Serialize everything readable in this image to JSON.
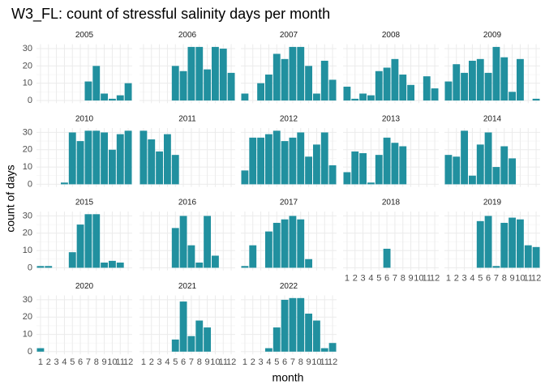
{
  "chart_data": {
    "type": "bar",
    "title": "W3_FL: count of stressful salinity days per month",
    "x_label": "month",
    "y_label": "count of days",
    "categories": [
      "1",
      "2",
      "3",
      "4",
      "5",
      "6",
      "7",
      "8",
      "9",
      "10",
      "11",
      "12"
    ],
    "color": "#21909f",
    "ylim": [
      -1.55,
      32.55
    ],
    "yticks": [
      0,
      10,
      20,
      30
    ],
    "grid": true,
    "facets": [
      {
        "name": "2005",
        "values": [
          null,
          null,
          null,
          null,
          null,
          null,
          11,
          20,
          4,
          1,
          3,
          10
        ]
      },
      {
        "name": "2006",
        "values": [
          null,
          null,
          null,
          null,
          20,
          17,
          31,
          31,
          18,
          31,
          30,
          16
        ]
      },
      {
        "name": "2007",
        "values": [
          4,
          null,
          10,
          15,
          27,
          24,
          31,
          31,
          20,
          4,
          23,
          12
        ]
      },
      {
        "name": "2008",
        "values": [
          8,
          1,
          4,
          3,
          17,
          19,
          24,
          15,
          9,
          null,
          14,
          7
        ]
      },
      {
        "name": "2009",
        "values": [
          11,
          21,
          16,
          23,
          24,
          16,
          31,
          25,
          5,
          24,
          null,
          1
        ]
      },
      {
        "name": "2010",
        "values": [
          null,
          null,
          null,
          1,
          30,
          25,
          31,
          31,
          30,
          20,
          29,
          31
        ]
      },
      {
        "name": "2011",
        "values": [
          31,
          26,
          19,
          29,
          17,
          null,
          null,
          null,
          null,
          null,
          null,
          null
        ]
      },
      {
        "name": "2012",
        "values": [
          8,
          27,
          27,
          29,
          31,
          25,
          27,
          30,
          16,
          23,
          30,
          11
        ]
      },
      {
        "name": "2013",
        "values": [
          7,
          19,
          18,
          1,
          17,
          27,
          24,
          22,
          null,
          null,
          null,
          null
        ]
      },
      {
        "name": "2014",
        "values": [
          17,
          16,
          31,
          5,
          23,
          30,
          10,
          22,
          15,
          null,
          null,
          null
        ]
      },
      {
        "name": "2015",
        "values": [
          1,
          1,
          null,
          null,
          9,
          25,
          31,
          31,
          3,
          4,
          3,
          null
        ]
      },
      {
        "name": "2016",
        "values": [
          null,
          null,
          null,
          null,
          23,
          30,
          13,
          3,
          30,
          7,
          null,
          null
        ]
      },
      {
        "name": "2017",
        "values": [
          1,
          13,
          null,
          21,
          26,
          28,
          30,
          28,
          5,
          null,
          null,
          null
        ]
      },
      {
        "name": "2018",
        "values": [
          null,
          null,
          null,
          null,
          null,
          11,
          null,
          null,
          null,
          null,
          null,
          null
        ]
      },
      {
        "name": "2019",
        "values": [
          null,
          null,
          null,
          null,
          27,
          30,
          1,
          26,
          29,
          28,
          13,
          12
        ]
      },
      {
        "name": "2020",
        "values": [
          2,
          null,
          null,
          null,
          null,
          null,
          null,
          null,
          null,
          null,
          null,
          null
        ]
      },
      {
        "name": "2021",
        "values": [
          null,
          null,
          null,
          null,
          7,
          29,
          9,
          18,
          14,
          null,
          null,
          null
        ]
      },
      {
        "name": "2022",
        "values": [
          null,
          null,
          null,
          2,
          14,
          30,
          31,
          31,
          22,
          18,
          2,
          5
        ]
      }
    ]
  }
}
